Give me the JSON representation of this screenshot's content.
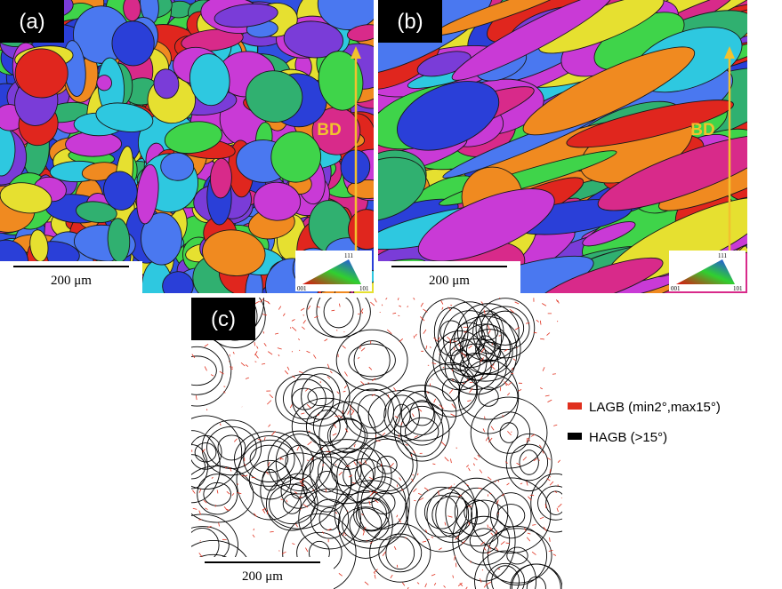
{
  "panels": [
    {
      "label": "(a)",
      "direction": "BD",
      "scale_bar": "200 μm",
      "ipf": {
        "top": "111",
        "left": "001",
        "right": "101"
      }
    },
    {
      "label": "(b)",
      "direction": "BD",
      "scale_bar": "200 μm",
      "ipf": {
        "top": "111",
        "left": "001",
        "right": "101"
      }
    },
    {
      "label": "(c)",
      "scale_bar": "200 μm"
    }
  ],
  "legend": [
    {
      "label": "LAGB (min2°,max15°)",
      "color": "#e0301e"
    },
    {
      "label": "HAGB (>15°)",
      "color": "#000000"
    }
  ]
}
